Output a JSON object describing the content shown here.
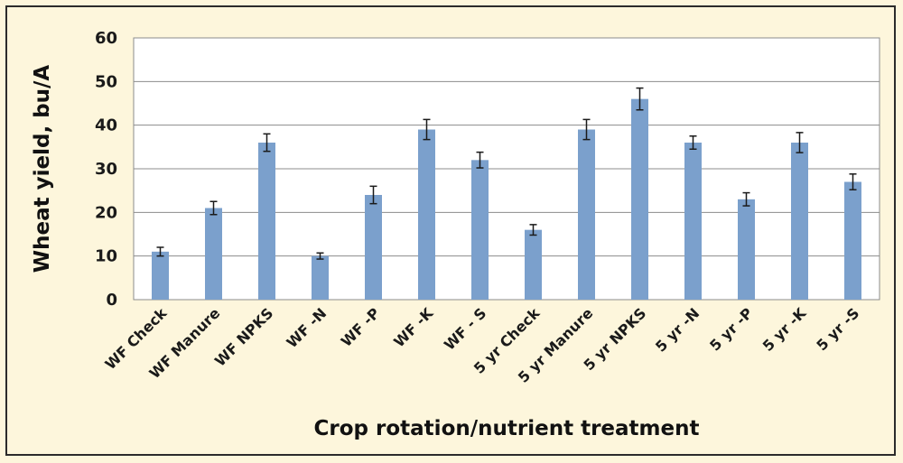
{
  "chart_data": {
    "type": "bar",
    "title": "",
    "xlabel": "Crop rotation/nutrient treatment",
    "ylabel": "Wheat yield, bu/A",
    "ylim": [
      0,
      60
    ],
    "yticks": [
      0,
      10,
      20,
      30,
      40,
      50,
      60
    ],
    "grid": true,
    "categories": [
      "WF Check",
      "WF Manure",
      "WF NPKS",
      "WF -N",
      "WF -P",
      "WF -K",
      "WF - S",
      "5 yr Check",
      "5 yr Manure",
      "5 yr NPKS",
      "5 yr -N",
      "5 yr -P",
      "5 yr -K",
      "5 yr -S"
    ],
    "values": [
      11,
      21,
      36,
      10,
      24,
      39,
      32,
      16,
      39,
      46,
      36,
      23,
      36,
      27
    ],
    "error": [
      1,
      1.5,
      2,
      0.7,
      2,
      2.3,
      1.8,
      1.2,
      2.3,
      2.5,
      1.5,
      1.5,
      2.3,
      1.8
    ],
    "bar_color": "#7ba0cc",
    "plot_background": "#ffffff",
    "page_background": "#fdf6dc"
  }
}
